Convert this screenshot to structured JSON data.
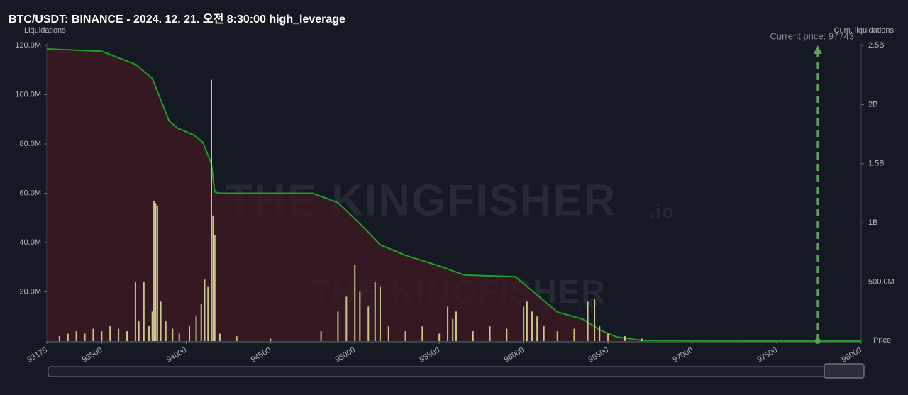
{
  "chart_data": {
    "type": "bar",
    "title": "BTC/USDT: BINANCE - 2024. 12. 21. 오전 8:30:00 high_leverage",
    "y_label": "Liquidations",
    "y2_label": "Cum. liquidations",
    "x_label": "Price",
    "watermark": "THE KINGFISHER",
    "watermark_suffix": ".io",
    "annotation": {
      "label": "Current price: 97743",
      "value": 97743
    },
    "xlim": [
      93175,
      98000
    ],
    "xticks": [
      93175,
      93500,
      94000,
      94500,
      95000,
      95500,
      96000,
      96500,
      97000,
      97500,
      98000
    ],
    "ylim": [
      0,
      120000000
    ],
    "yticks": [
      {
        "value": 20000000,
        "label": "20.0M"
      },
      {
        "value": 40000000,
        "label": "40.0M"
      },
      {
        "value": 60000000,
        "label": "60.0M"
      },
      {
        "value": 80000000,
        "label": "80.0M"
      },
      {
        "value": 100000000,
        "label": "100.0M"
      },
      {
        "value": 120000000,
        "label": "120.0M"
      }
    ],
    "y2lim": [
      0,
      2500000000
    ],
    "y2ticks": [
      {
        "value": 500000000,
        "label": "500.0M"
      },
      {
        "value": 1000000000,
        "label": "1B"
      },
      {
        "value": 1500000000,
        "label": "1.5B"
      },
      {
        "value": 2000000000,
        "label": "2B"
      },
      {
        "value": 2500000000,
        "label": "2.5B"
      }
    ],
    "grid": false,
    "series": [
      {
        "type": "bar",
        "axis": "y",
        "color": "#c9c98f",
        "x": [
          93250,
          93300,
          93350,
          93400,
          93450,
          93500,
          93550,
          93600,
          93650,
          93700,
          93720,
          93750,
          93780,
          93800,
          93810,
          93820,
          93830,
          93850,
          93880,
          93920,
          93960,
          94020,
          94060,
          94090,
          94110,
          94130,
          94150,
          94160,
          94170,
          94200,
          94300,
          94500,
          94800,
          94900,
          94950,
          95000,
          95030,
          95080,
          95120,
          95150,
          95200,
          95300,
          95400,
          95500,
          95550,
          95580,
          95600,
          95700,
          95800,
          95900,
          96000,
          96020,
          96050,
          96080,
          96120,
          96200,
          96300,
          96380,
          96420,
          96450,
          96500,
          96600,
          96700
        ],
        "values": [
          2000000,
          3000000,
          4000000,
          3000000,
          5000000,
          4000000,
          6000000,
          5000000,
          4000000,
          24000000,
          8000000,
          24000000,
          6000000,
          12000000,
          57000000,
          56000000,
          55000000,
          16000000,
          8000000,
          5000000,
          3000000,
          6000000,
          10000000,
          15000000,
          25000000,
          22000000,
          106000000,
          51000000,
          43000000,
          3000000,
          2000000,
          1000000,
          4000000,
          12000000,
          18000000,
          31000000,
          20000000,
          14000000,
          24000000,
          22000000,
          6000000,
          4000000,
          6000000,
          3000000,
          14000000,
          9000000,
          12000000,
          4000000,
          6000000,
          5000000,
          14000000,
          16000000,
          12000000,
          10000000,
          6000000,
          4000000,
          5000000,
          16000000,
          17000000,
          6000000,
          3000000,
          2000000,
          1000000
        ]
      },
      {
        "type": "line",
        "axis": "y2",
        "color": "#1f9e2a",
        "fill": "#3a1a22",
        "x": [
          93175,
          93500,
          93700,
          93800,
          93850,
          93900,
          93950,
          94050,
          94100,
          94150,
          94170,
          94200,
          94750,
          94900,
          95050,
          95150,
          95300,
          95500,
          95650,
          95950,
          96100,
          96200,
          96350,
          96450,
          96550,
          96700,
          98000
        ],
        "values": [
          2470000000,
          2450000000,
          2340000000,
          2220000000,
          2040000000,
          1860000000,
          1800000000,
          1740000000,
          1680000000,
          1500000000,
          1260000000,
          1250000000,
          1250000000,
          1170000000,
          965000000,
          815000000,
          725000000,
          635000000,
          558000000,
          545000000,
          366000000,
          246000000,
          186000000,
          96000000,
          36000000,
          6000000,
          0
        ]
      }
    ]
  }
}
